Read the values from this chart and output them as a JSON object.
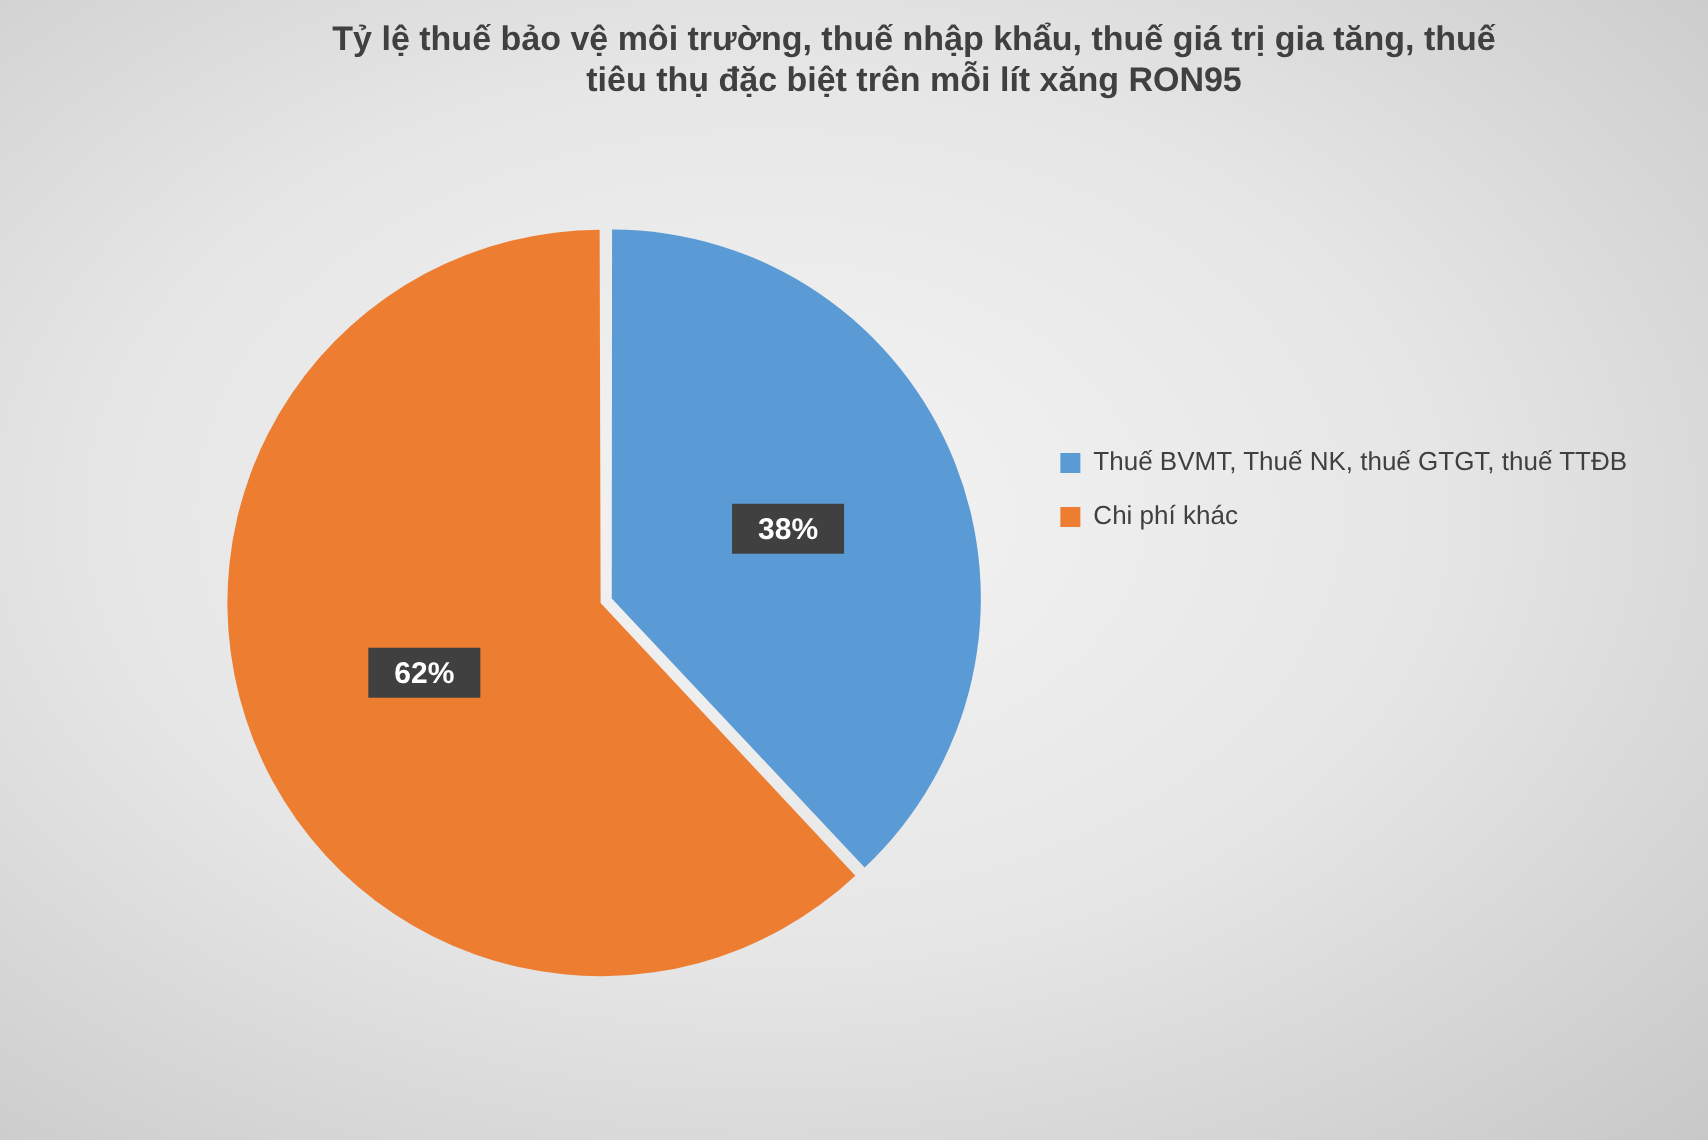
{
  "chart_data": {
    "type": "pie",
    "title": "Tỷ lệ thuế bảo vệ môi trường, thuế nhập khẩu, thuế giá trị gia tăng, thuế tiêu thụ đặc biệt trên mỗi lít xăng RON95",
    "categories": [
      "Thuế BVMT, Thuế NK, thuế GTGT, thuế TTĐB",
      "Chi phí khác"
    ],
    "values": [
      38,
      62
    ],
    "colors": [
      "#5b9bd5",
      "#ed7d31"
    ],
    "value_labels": [
      "38%",
      "62%"
    ],
    "legend": "right"
  }
}
